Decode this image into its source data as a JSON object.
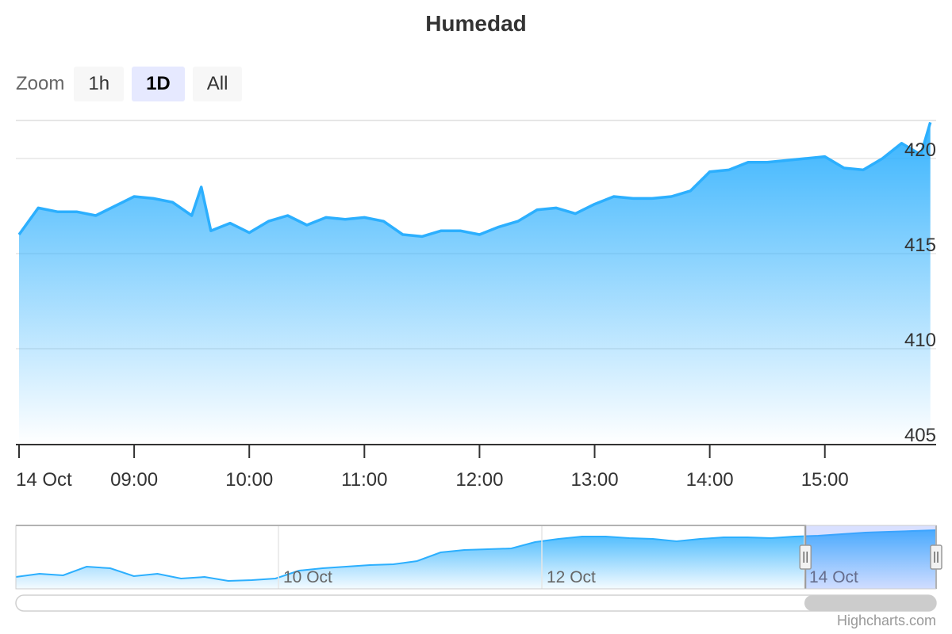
{
  "chart_data": {
    "type": "area",
    "title": "Humedad",
    "x_unit": "time (HH:MM, 14 Oct)",
    "x": [
      "08:00",
      "08:10",
      "08:20",
      "08:30",
      "08:40",
      "08:50",
      "09:00",
      "09:10",
      "09:20",
      "09:30",
      "09:35",
      "09:40",
      "09:50",
      "10:00",
      "10:10",
      "10:20",
      "10:30",
      "10:40",
      "10:50",
      "11:00",
      "11:10",
      "11:20",
      "11:30",
      "11:40",
      "11:50",
      "12:00",
      "12:10",
      "12:20",
      "12:30",
      "12:40",
      "12:50",
      "13:00",
      "13:10",
      "13:20",
      "13:30",
      "13:40",
      "13:50",
      "14:00",
      "14:10",
      "14:20",
      "14:30",
      "14:40",
      "14:50",
      "15:00",
      "15:10",
      "15:20",
      "15:30",
      "15:40",
      "15:50",
      "15:55"
    ],
    "series": [
      {
        "values": [
          416.0,
          417.4,
          417.2,
          417.2,
          417.0,
          417.5,
          418.0,
          417.9,
          417.7,
          417.0,
          418.5,
          416.2,
          416.6,
          416.1,
          416.7,
          417.0,
          416.5,
          416.9,
          416.8,
          416.9,
          416.7,
          416.0,
          415.9,
          416.2,
          416.2,
          416.0,
          416.4,
          416.7,
          417.3,
          417.4,
          417.1,
          417.6,
          418.0,
          417.9,
          417.9,
          418.0,
          418.3,
          419.3,
          419.4,
          419.8,
          419.8,
          419.9,
          420.0,
          420.1,
          419.5,
          419.4,
          420.0,
          420.8,
          420.2,
          421.9
        ]
      }
    ],
    "ylim": [
      405,
      422
    ],
    "yticks": [
      "405",
      "410",
      "415",
      "420"
    ],
    "xticks": [
      "14 Oct",
      "09:00",
      "10:00",
      "11:00",
      "12:00",
      "13:00",
      "14:00",
      "15:00"
    ],
    "grid": true,
    "color": "#2caffe"
  },
  "zoom": {
    "label": "Zoom",
    "buttons": [
      {
        "label": "1h",
        "active": false
      },
      {
        "label": "1D",
        "active": true
      },
      {
        "label": "All",
        "active": false
      }
    ]
  },
  "navigator": {
    "date_labels": [
      "10 Oct",
      "12 Oct",
      "14 Oct"
    ],
    "series": [
      414.5,
      414.9,
      414.7,
      415.8,
      415.6,
      414.6,
      414.9,
      414.3,
      414.5,
      414.0,
      414.1,
      414.3,
      415.3,
      415.6,
      415.8,
      416.0,
      416.1,
      416.5,
      417.6,
      417.9,
      418.0,
      418.1,
      418.9,
      419.3,
      419.6,
      419.6,
      419.4,
      419.3,
      419.0,
      419.3,
      419.5,
      419.5,
      419.4,
      419.6,
      419.7,
      419.9,
      420.1,
      420.2,
      420.3,
      420.4
    ],
    "selection": [
      0.858,
      1.0
    ]
  },
  "credits": "Highcharts.com"
}
